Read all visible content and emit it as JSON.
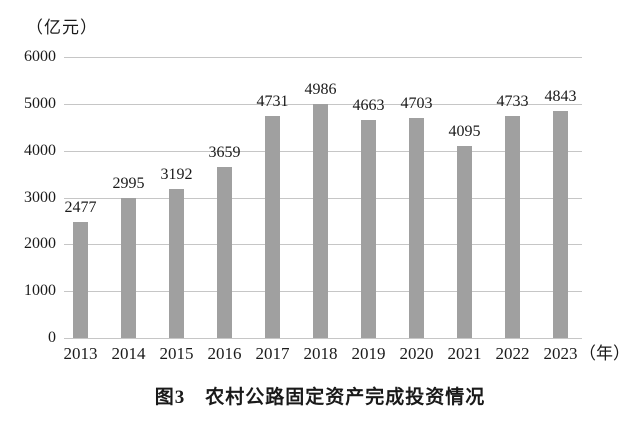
{
  "chart_data": {
    "type": "bar",
    "title": "图3　农村公路固定资产完成投资情况",
    "unit_label": "（亿元）",
    "x_unit_label": "（年）",
    "categories": [
      "2013",
      "2014",
      "2015",
      "2016",
      "2017",
      "2018",
      "2019",
      "2020",
      "2021",
      "2022",
      "2023"
    ],
    "values": [
      2477,
      2995,
      3192,
      3659,
      4731,
      4986,
      4663,
      4703,
      4095,
      4733,
      4843
    ],
    "y_ticks": [
      0,
      1000,
      2000,
      3000,
      4000,
      5000,
      6000
    ],
    "ylim": [
      0,
      6000
    ],
    "xlabel": "",
    "ylabel": "",
    "grid": "horizontal",
    "legend": "none",
    "bar_color": "#a0a0a0",
    "gridline_color": "#c6c6c6",
    "text_color": "#1a1a1a"
  }
}
